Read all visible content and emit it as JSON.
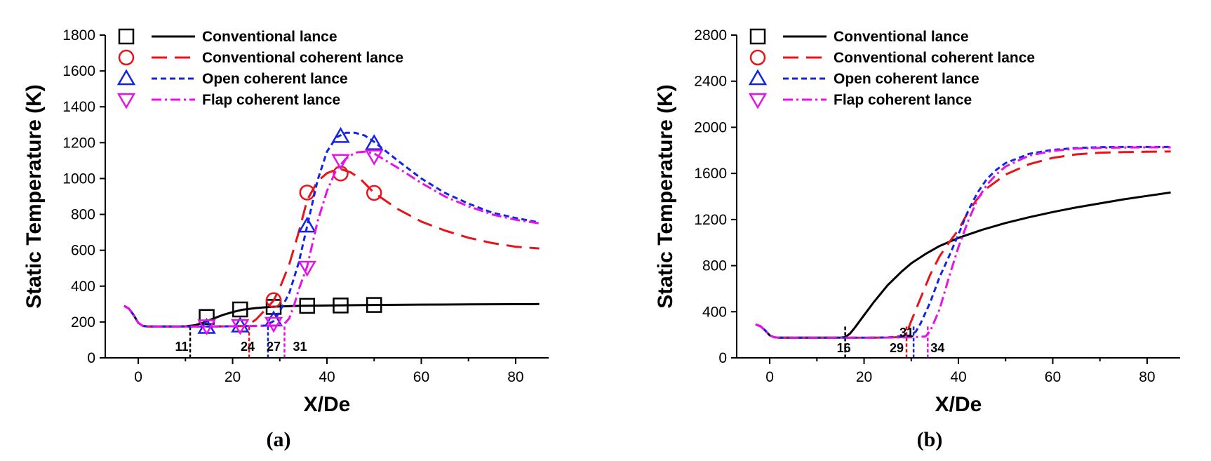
{
  "series_styles": [
    {
      "name": "Conventional lance",
      "color": "#000000",
      "dash": "",
      "marker": "square"
    },
    {
      "name": "Conventional coherent lance",
      "color": "#e8141c",
      "dash": "22 11",
      "marker": "circle"
    },
    {
      "name": "Open coherent lance",
      "color": "#1424e6",
      "dash": "8 5",
      "marker": "triangle-up"
    },
    {
      "name": "Flap coherent lance",
      "color": "#e414e4",
      "dash": "14 5 3 5",
      "marker": "triangle-down"
    }
  ],
  "chart_data": [
    {
      "type": "line",
      "panel_label": "(a)",
      "xlabel": "X/De",
      "ylabel": "Static Temperature (K)",
      "xlim": [
        -7,
        87
      ],
      "ylim": [
        0,
        1800
      ],
      "xticks": [
        0,
        20,
        40,
        60,
        80
      ],
      "yticks": [
        0,
        200,
        400,
        600,
        800,
        1000,
        1200,
        1400,
        1600,
        1800
      ],
      "legend": [
        "Conventional lance",
        "Conventional coherent lance",
        "Open coherent lance",
        "Flap coherent lance"
      ],
      "series": [
        {
          "name": "Conventional lance",
          "x": [
            -3,
            -2,
            -1,
            0,
            1,
            2,
            5,
            8,
            10,
            12,
            14,
            16,
            18,
            20,
            22,
            25,
            28,
            30,
            34,
            40,
            50,
            60,
            70,
            85
          ],
          "values": [
            290,
            275,
            240,
            195,
            178,
            175,
            175,
            175,
            176,
            182,
            198,
            220,
            240,
            255,
            268,
            278,
            284,
            287,
            290,
            292,
            295,
            297,
            298,
            300
          ],
          "marker_x": [
            14.5,
            21.6,
            28.7,
            35.8,
            42.9,
            50
          ],
          "marker_y": [
            228,
            270,
            284,
            290,
            292,
            295
          ]
        },
        {
          "name": "Conventional coherent lance",
          "x": [
            -3,
            -2,
            -1,
            0,
            1,
            2,
            5,
            10,
            15,
            20,
            23,
            25,
            27,
            28.7,
            30,
            32,
            34,
            35.8,
            38,
            40,
            42,
            43,
            45,
            47,
            50,
            55,
            60,
            65,
            70,
            75,
            80,
            85
          ],
          "values": [
            290,
            275,
            240,
            195,
            178,
            175,
            175,
            175,
            175,
            176,
            178,
            215,
            270,
            320,
            390,
            520,
            700,
            880,
            985,
            1030,
            1050,
            1052,
            1035,
            1000,
            920,
            830,
            760,
            710,
            670,
            640,
            620,
            610
          ],
          "marker_x": [
            28.7,
            35.8,
            42.9,
            50
          ],
          "marker_y": [
            322,
            922,
            1028,
            920
          ]
        },
        {
          "name": "Open coherent lance",
          "x": [
            -3,
            -2,
            -1,
            0,
            1,
            2,
            5,
            10,
            15,
            20,
            25,
            27,
            28.7,
            30,
            32,
            34,
            35.8,
            38,
            40,
            42,
            44,
            46,
            48,
            50,
            55,
            60,
            65,
            70,
            75,
            80,
            85
          ],
          "values": [
            290,
            275,
            240,
            195,
            178,
            175,
            175,
            175,
            175,
            176,
            178,
            180,
            205,
            260,
            360,
            530,
            735,
            990,
            1150,
            1230,
            1255,
            1255,
            1240,
            1205,
            1100,
            1000,
            920,
            860,
            810,
            780,
            755
          ],
          "marker_x": [
            14.5,
            21.6,
            28.7,
            35.8,
            42.9,
            50
          ],
          "marker_y": [
            170,
            178,
            212,
            735,
            1235,
            1195
          ]
        },
        {
          "name": "Flap coherent lance",
          "x": [
            -3,
            -2,
            -1,
            0,
            1,
            2,
            5,
            10,
            15,
            20,
            25,
            30,
            31,
            32,
            33,
            34,
            35.8,
            38,
            40,
            42,
            44,
            46,
            48,
            50,
            55,
            60,
            65,
            70,
            75,
            80,
            85
          ],
          "values": [
            290,
            275,
            240,
            195,
            178,
            175,
            175,
            175,
            175,
            176,
            178,
            180,
            190,
            220,
            290,
            380,
            510,
            760,
            930,
            1050,
            1110,
            1145,
            1150,
            1140,
            1060,
            975,
            900,
            845,
            800,
            770,
            750
          ],
          "marker_x": [
            14.5,
            21.6,
            28.7,
            35.8,
            42.9,
            50
          ],
          "marker_y": [
            178,
            180,
            192,
            505,
            1100,
            1125
          ]
        }
      ],
      "annotations": [
        {
          "text": "11",
          "x": 11,
          "color": "#000000"
        },
        {
          "text": "24",
          "x": 23.5,
          "color": "#e8141c"
        },
        {
          "text": "27",
          "x": 27.5,
          "color": "#1424e6"
        },
        {
          "text": "31",
          "x": 31,
          "color": "#e414e4"
        }
      ]
    },
    {
      "type": "line",
      "panel_label": "(b)",
      "xlabel": "X/De",
      "ylabel": "Static Temperature (K)",
      "xlim": [
        -7,
        87
      ],
      "ylim": [
        0,
        2800
      ],
      "xticks": [
        0,
        20,
        40,
        60,
        80
      ],
      "yticks": [
        0,
        400,
        800,
        1200,
        1600,
        2000,
        2400,
        2800
      ],
      "legend": [
        "Conventional lance",
        "Conventional coherent lance",
        "Open coherent lance",
        "Flap coherent lance"
      ],
      "series": [
        {
          "name": "Conventional lance",
          "x": [
            -3,
            -2,
            -1,
            0,
            1,
            2,
            5,
            10,
            15,
            16,
            17,
            18,
            20,
            22,
            25,
            28,
            30,
            33,
            36,
            40,
            45,
            50,
            55,
            60,
            65,
            70,
            75,
            80,
            85
          ],
          "values": [
            290,
            275,
            240,
            195,
            178,
            175,
            175,
            175,
            176,
            180,
            210,
            260,
            370,
            480,
            630,
            750,
            820,
            900,
            970,
            1040,
            1110,
            1170,
            1220,
            1265,
            1305,
            1340,
            1375,
            1405,
            1435
          ]
        },
        {
          "name": "Conventional coherent lance",
          "x": [
            -3,
            -2,
            -1,
            0,
            1,
            2,
            5,
            10,
            15,
            20,
            25,
            28,
            29,
            30,
            32,
            34,
            36,
            38,
            40,
            42,
            44,
            46,
            50,
            55,
            60,
            65,
            70,
            75,
            80,
            85
          ],
          "values": [
            290,
            275,
            240,
            195,
            178,
            175,
            175,
            175,
            175,
            175,
            176,
            180,
            210,
            320,
            520,
            720,
            880,
            1000,
            1110,
            1260,
            1380,
            1470,
            1590,
            1680,
            1735,
            1765,
            1780,
            1785,
            1788,
            1790
          ]
        },
        {
          "name": "Open coherent lance",
          "x": [
            -3,
            -2,
            -1,
            0,
            1,
            2,
            5,
            10,
            15,
            20,
            25,
            30,
            31,
            32,
            34,
            36,
            38,
            40,
            42,
            44,
            46,
            48,
            50,
            55,
            60,
            65,
            70,
            75,
            80,
            85
          ],
          "values": [
            290,
            275,
            240,
            195,
            178,
            175,
            175,
            175,
            175,
            175,
            177,
            195,
            230,
            300,
            480,
            700,
            880,
            1070,
            1270,
            1430,
            1550,
            1630,
            1690,
            1770,
            1805,
            1820,
            1828,
            1830,
            1830,
            1830
          ]
        },
        {
          "name": "Flap coherent lance",
          "x": [
            -3,
            -2,
            -1,
            0,
            1,
            2,
            5,
            10,
            15,
            20,
            25,
            30,
            33,
            34,
            36,
            38,
            40,
            42,
            44,
            46,
            48,
            50,
            55,
            60,
            65,
            70,
            75,
            80,
            85
          ],
          "values": [
            290,
            275,
            240,
            195,
            178,
            175,
            175,
            175,
            175,
            175,
            176,
            178,
            185,
            230,
            420,
            700,
            960,
            1180,
            1370,
            1500,
            1590,
            1660,
            1755,
            1795,
            1815,
            1822,
            1825,
            1826,
            1826
          ]
        }
      ],
      "annotations": [
        {
          "text": "16",
          "x": 16,
          "color": "#000000"
        },
        {
          "text": "29",
          "x": 29,
          "color": "#e8141c"
        },
        {
          "text": "31",
          "x": 30.5,
          "color": "#1424e6"
        },
        {
          "text": "34",
          "x": 33.5,
          "color": "#e414e4"
        }
      ]
    }
  ]
}
